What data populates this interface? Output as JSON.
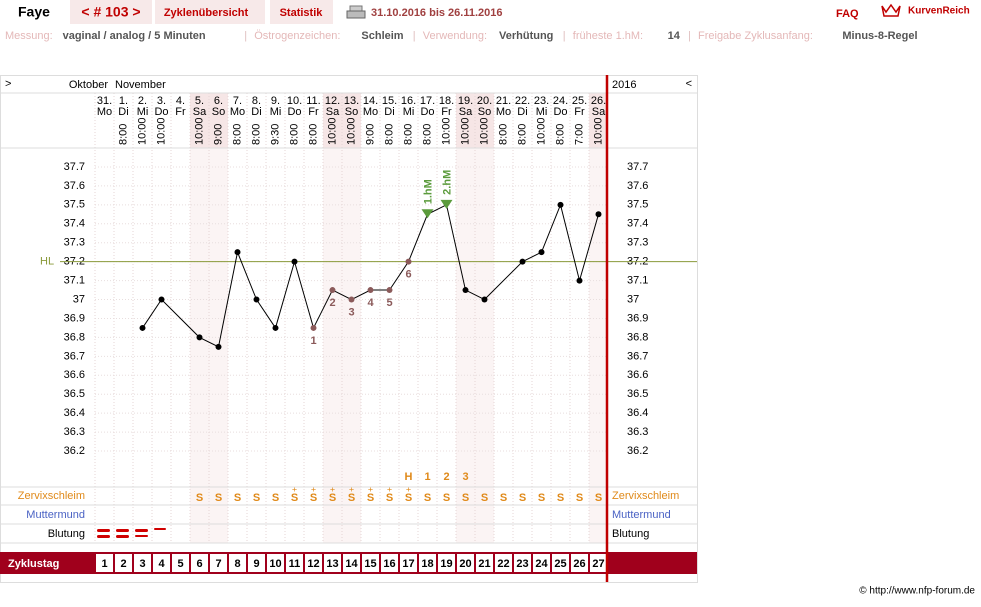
{
  "header": {
    "name": "Faye",
    "cycle_nav": "< # 103 >",
    "tabs": [
      "Zyklenübersicht",
      "Statistik"
    ],
    "period": "31.10.2016 bis 26.11.2016",
    "faq": "FAQ",
    "brand": "KurvenReich"
  },
  "info": [
    {
      "label": "Messung:",
      "value": "vaginal / analog / 5 Minuten"
    },
    {
      "label": "Östrogenzeichen:",
      "value": "Schleim"
    },
    {
      "label": "Verwendung:",
      "value": "Verhütung"
    },
    {
      "label": "früheste 1.hM:",
      "value": "14"
    },
    {
      "label": "Freigabe Zyklusanfang:",
      "value": "Minus-8-Regel"
    }
  ],
  "chart_data": {
    "type": "line",
    "nav_left": ">",
    "nav_right": "<",
    "months": [
      "Oktober",
      "November"
    ],
    "year": "2016",
    "dates": [
      "31.",
      "1.",
      "2.",
      "3.",
      "4.",
      "5.",
      "6.",
      "7.",
      "8.",
      "9.",
      "10.",
      "11.",
      "12.",
      "13.",
      "14.",
      "15.",
      "16.",
      "17.",
      "18.",
      "19.",
      "20.",
      "21.",
      "22.",
      "23.",
      "24.",
      "25.",
      "26."
    ],
    "weekdays": [
      "Mo",
      "Di",
      "Mi",
      "Do",
      "Fr",
      "Sa",
      "So",
      "Mo",
      "Di",
      "Mi",
      "Do",
      "Fr",
      "Sa",
      "So",
      "Mo",
      "Di",
      "Mi",
      "Do",
      "Fr",
      "Sa",
      "So",
      "Mo",
      "Di",
      "Mi",
      "Do",
      "Fr",
      "Sa"
    ],
    "times": [
      null,
      "8:00",
      "10:00",
      "10:00",
      null,
      "10:00",
      "9:00",
      "8:00",
      "8:00",
      "9:30",
      "8:00",
      "8:00",
      "10:00",
      "10:00",
      "9:00",
      "8:00",
      "8:00",
      "8:00",
      "10:00",
      "10:00",
      "10:00",
      "8:00",
      "8:00",
      "10:00",
      "8:00",
      "7:00",
      "10:00"
    ],
    "cycle_day_label": "Zyklustag",
    "cycle_days": [
      1,
      2,
      3,
      4,
      5,
      6,
      7,
      8,
      9,
      10,
      11,
      12,
      13,
      14,
      15,
      16,
      17,
      18,
      19,
      20,
      21,
      22,
      23,
      24,
      25,
      26,
      27
    ],
    "xlim": [
      1,
      27
    ],
    "x": [
      3,
      4,
      6,
      7,
      8,
      9,
      10,
      11,
      12,
      13,
      14,
      15,
      16,
      17,
      18,
      19,
      20,
      21,
      23,
      24,
      25,
      26,
      27
    ],
    "series": [
      {
        "color": "#000000",
        "values": [
          36.85,
          37.0,
          36.8,
          36.75,
          37.25,
          37.0,
          36.85,
          37.2,
          36.85,
          37.05,
          37.0,
          37.05,
          37.05,
          37.2,
          37.45,
          37.5,
          37.05,
          37.0,
          37.2,
          37.25,
          37.5,
          37.1,
          37.45
        ]
      }
    ],
    "point_labels": [
      null,
      null,
      null,
      null,
      null,
      null,
      null,
      null,
      "1",
      "2",
      "3",
      "4",
      "5",
      "6",
      "1.hM",
      "2.hM",
      null,
      null,
      null,
      null,
      null,
      null,
      null
    ],
    "point_colors": [
      "#000000",
      "#000000",
      "#000000",
      "#000000",
      "#000000",
      "#000000",
      "#000000",
      "#000000",
      "#8b5a5a",
      "#8b5a5a",
      "#8b5a5a",
      "#8b5a5a",
      "#8b5a5a",
      "#8b5a5a",
      "#5b9b3c",
      "#5b9b3c",
      "#000000",
      "#000000",
      "#000000",
      "#000000",
      "#000000",
      "#000000",
      "#000000"
    ],
    "high_color": "#5b9b3c",
    "ylim": [
      36.1,
      37.8
    ],
    "yticks": [
      36.2,
      36.3,
      36.4,
      36.5,
      36.6,
      36.7,
      36.8,
      36.9,
      37,
      37.1,
      37.2,
      37.3,
      37.4,
      37.5,
      37.6,
      37.7
    ],
    "grid": true,
    "cover_line": {
      "label": "HL",
      "value": 37.2,
      "color": "#8a9a3a"
    },
    "symptom_marks": [
      null,
      null,
      null,
      null,
      null,
      null,
      null,
      null,
      null,
      null,
      null,
      null,
      null,
      null,
      null,
      null,
      "H",
      "1",
      "2",
      "3",
      null,
      null,
      null,
      null,
      null,
      null,
      null
    ],
    "rows": [
      {
        "label": "Zervixschleim",
        "color": "#e08a1a"
      },
      {
        "label": "Muttermund",
        "color": "#4a62c4"
      },
      {
        "label": "Blutung",
        "color": "#000000"
      }
    ],
    "mucus": [
      null,
      null,
      null,
      null,
      null,
      "S",
      "S",
      "S",
      "S",
      "S",
      "S",
      "S",
      "S",
      "S",
      "S",
      "S",
      "S",
      "S",
      "S",
      "S",
      "S",
      "S",
      "S",
      "S",
      "S",
      "S",
      "S"
    ],
    "mucus_plus": [
      null,
      null,
      null,
      null,
      null,
      null,
      null,
      null,
      null,
      null,
      "+",
      "+",
      "+",
      "+",
      "+",
      "+",
      "+",
      null,
      null,
      null,
      null,
      null,
      null,
      null,
      null,
      null,
      null
    ]
  },
  "footer": "© http://www.nfp-forum.de"
}
